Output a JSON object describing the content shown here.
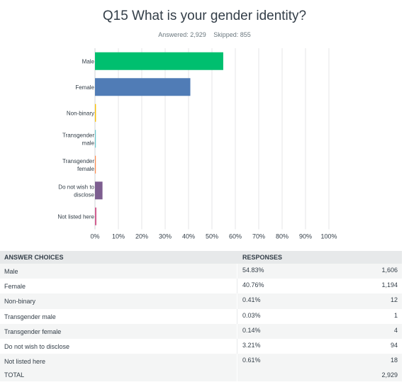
{
  "title": "Q15 What is your gender identity?",
  "answered": "Answered: 2,929",
  "skipped": "Skipped: 855",
  "chart_data": {
    "type": "bar",
    "orientation": "horizontal",
    "categories": [
      [
        "Male"
      ],
      [
        "Female"
      ],
      [
        "Non-binary"
      ],
      [
        "Transgender",
        "male"
      ],
      [
        "Transgender",
        "female"
      ],
      [
        "Do not wish to",
        "disclose"
      ],
      [
        "Not listed here"
      ]
    ],
    "values": [
      54.83,
      40.76,
      0.41,
      0.03,
      0.14,
      3.21,
      0.61
    ],
    "colors": [
      "#00bf6f",
      "#507cb6",
      "#f9be00",
      "#6bc8cd",
      "#ff8b4f",
      "#7d5e90",
      "#d25f90"
    ],
    "xlim": [
      0,
      100
    ],
    "x_ticks": [
      "0%",
      "10%",
      "20%",
      "30%",
      "40%",
      "50%",
      "60%",
      "70%",
      "80%",
      "90%",
      "100%"
    ],
    "grid": true
  },
  "table": {
    "headers": [
      "ANSWER CHOICES",
      "RESPONSES",
      ""
    ],
    "rows": [
      {
        "choice": "Male",
        "percent": "54.83%",
        "count": "1,606"
      },
      {
        "choice": "Female",
        "percent": "40.76%",
        "count": "1,194"
      },
      {
        "choice": "Non-binary",
        "percent": "0.41%",
        "count": "12"
      },
      {
        "choice": "Transgender male",
        "percent": "0.03%",
        "count": "1"
      },
      {
        "choice": "Transgender female",
        "percent": "0.14%",
        "count": "4"
      },
      {
        "choice": "Do not wish to disclose",
        "percent": "3.21%",
        "count": "94"
      },
      {
        "choice": "Not listed here",
        "percent": "0.61%",
        "count": "18"
      }
    ],
    "total_label": "TOTAL",
    "total_value": "2,929"
  }
}
